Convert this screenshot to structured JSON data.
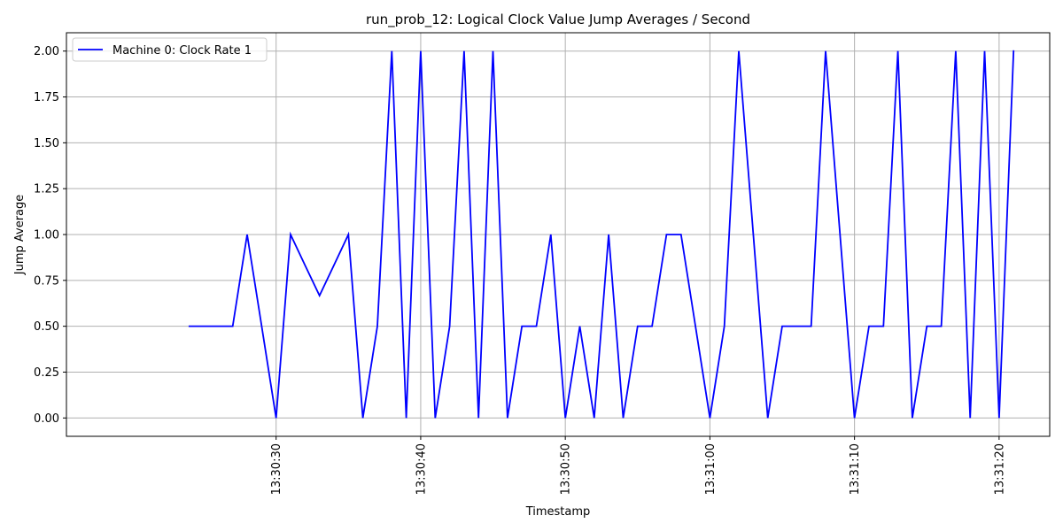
{
  "chart_data": {
    "type": "line",
    "title": "run_prob_12: Logical Clock Value Jump Averages / Second",
    "xlabel": "Timestamp",
    "ylabel": "Jump Average",
    "x_range": [
      "13:30:15.5",
      "13:31:23.5"
    ],
    "ylim": [
      -0.1,
      2.1
    ],
    "grid": true,
    "legend_position": "upper-left",
    "x_ticks": [
      "13:30:30",
      "13:30:40",
      "13:30:50",
      "13:31:00",
      "13:31:10",
      "13:31:20"
    ],
    "y_ticks": [
      "0.00",
      "0.25",
      "0.50",
      "0.75",
      "1.00",
      "1.25",
      "1.50",
      "1.75",
      "2.00"
    ],
    "series": [
      {
        "name": "Machine 0: Clock Rate 1",
        "color": "#0000ff",
        "x": [
          "13:30:24",
          "13:30:25",
          "13:30:26",
          "13:30:27",
          "13:30:28",
          "13:30:29",
          "13:30:30",
          "13:30:31",
          "13:30:32",
          "13:30:33",
          "13:30:34",
          "13:30:35",
          "13:30:36",
          "13:30:37",
          "13:30:38",
          "13:30:39",
          "13:30:40",
          "13:30:41",
          "13:30:42",
          "13:30:43",
          "13:30:44",
          "13:30:45",
          "13:30:46",
          "13:30:47",
          "13:30:48",
          "13:30:49",
          "13:30:50",
          "13:30:51",
          "13:30:52",
          "13:30:53",
          "13:30:54",
          "13:30:55",
          "13:30:56",
          "13:30:57",
          "13:30:58",
          "13:30:59",
          "13:31:00",
          "13:31:01",
          "13:31:02",
          "13:31:03",
          "13:31:04",
          "13:31:05",
          "13:31:06",
          "13:31:07",
          "13:31:08",
          "13:31:09",
          "13:31:10",
          "13:31:11",
          "13:31:12",
          "13:31:13",
          "13:31:14",
          "13:31:15",
          "13:31:16",
          "13:31:17",
          "13:31:18",
          "13:31:19",
          "13:31:20",
          "13:31:21"
        ],
        "y": [
          0.5,
          0.5,
          0.5,
          0.5,
          1.0,
          0.5,
          0.0,
          1.0,
          0.833,
          0.667,
          0.833,
          1.0,
          0.0,
          0.5,
          2.0,
          0.0,
          2.0,
          0.0,
          0.5,
          2.0,
          0.0,
          2.0,
          0.0,
          0.5,
          0.5,
          1.0,
          0.0,
          0.5,
          0.0,
          1.0,
          0.0,
          0.5,
          0.5,
          1.0,
          1.0,
          0.5,
          0.0,
          0.5,
          2.0,
          1.0,
          0.0,
          0.5,
          0.5,
          0.5,
          2.0,
          1.0,
          0.0,
          0.5,
          0.5,
          2.0,
          0.0,
          0.5,
          0.5,
          2.0,
          0.0,
          2.0,
          0.0,
          2.0
        ]
      }
    ]
  }
}
